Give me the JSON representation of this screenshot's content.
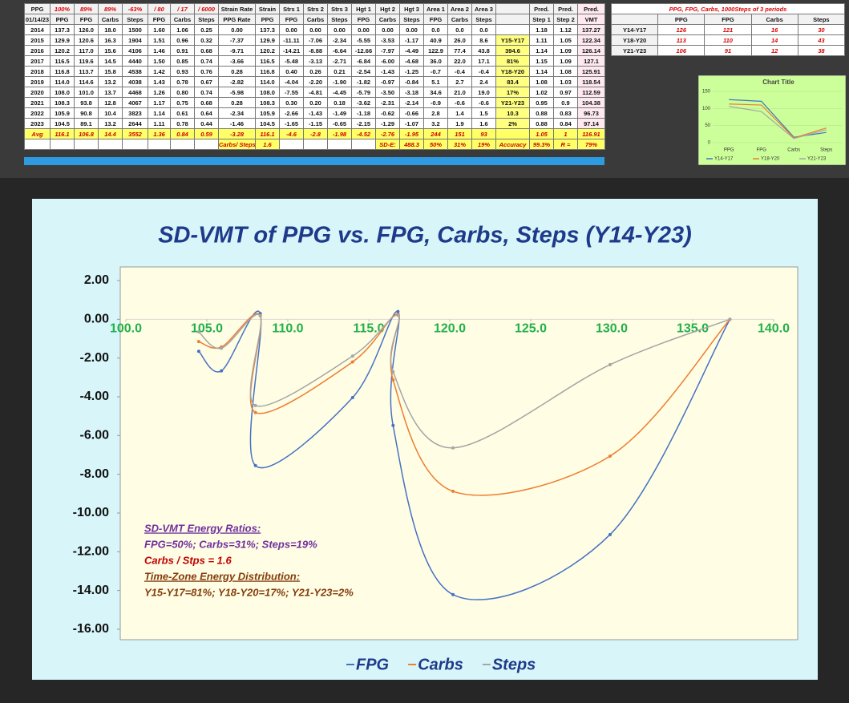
{
  "table": {
    "header": [
      [
        "PPG",
        "100%",
        "89%",
        "89%",
        "-63%",
        "/ 80",
        "/ 17",
        "/ 6000",
        "Strain Rate",
        "Strain",
        "Strs 1",
        "Strs 2",
        "Strs 3",
        "Hgt 1",
        "Hgt 2",
        "Hgt 3",
        "Area 1",
        "Area 2",
        "Area 3",
        "Pred.",
        "Pred.",
        "Pred."
      ],
      [
        "01/14/23",
        "PPG",
        "FPG",
        "Carbs",
        "Steps",
        "FPG",
        "Carbs",
        "Steps",
        "PPG Rate",
        "PPG",
        "FPG",
        "Carbs",
        "Steps",
        "FPG",
        "Carbs",
        "Steps",
        "FPG",
        "Carbs",
        "Steps",
        "Step 1",
        "Step 2",
        "VMT"
      ]
    ],
    "rows": [
      [
        "2014",
        "137.3",
        "126.0",
        "18.0",
        "1500",
        "1.60",
        "1.06",
        "0.25",
        "0.00",
        "137.3",
        "0.00",
        "0.00",
        "0.00",
        "0.00",
        "0.00",
        "0.00",
        "0.0",
        "0.0",
        "0.0",
        "1.18",
        "1.12",
        "137.27"
      ],
      [
        "2015",
        "129.9",
        "120.6",
        "16.3",
        "1904",
        "1.51",
        "0.96",
        "0.32",
        "-7.37",
        "129.9",
        "-11.11",
        "-7.06",
        "-2.34",
        "-5.55",
        "-3.53",
        "-1.17",
        "40.9",
        "26.0",
        "8.6",
        "1.11",
        "1.05",
        "122.34"
      ],
      [
        "2016",
        "120.2",
        "117.0",
        "15.6",
        "4106",
        "1.46",
        "0.91",
        "0.68",
        "-9.71",
        "120.2",
        "-14.21",
        "-8.88",
        "-6.64",
        "-12.66",
        "-7.97",
        "-4.49",
        "122.9",
        "77.4",
        "43.8",
        "1.14",
        "1.09",
        "126.14"
      ],
      [
        "2017",
        "116.5",
        "119.6",
        "14.5",
        "4440",
        "1.50",
        "0.85",
        "0.74",
        "-3.66",
        "116.5",
        "-5.48",
        "-3.13",
        "-2.71",
        "-6.84",
        "-6.00",
        "-4.68",
        "36.0",
        "22.0",
        "17.1",
        "1.15",
        "1.09",
        "127.1"
      ],
      [
        "2018",
        "116.8",
        "113.7",
        "15.8",
        "4538",
        "1.42",
        "0.93",
        "0.76",
        "0.28",
        "116.8",
        "0.40",
        "0.26",
        "0.21",
        "-2.54",
        "-1.43",
        "-1.25",
        "-0.7",
        "-0.4",
        "-0.4",
        "1.14",
        "1.08",
        "125.91"
      ],
      [
        "2019",
        "114.0",
        "114.6",
        "13.2",
        "4038",
        "1.43",
        "0.78",
        "0.67",
        "-2.82",
        "114.0",
        "-4.04",
        "-2.20",
        "-1.90",
        "-1.82",
        "-0.97",
        "-0.84",
        "5.1",
        "2.7",
        "2.4",
        "1.08",
        "1.03",
        "118.54"
      ],
      [
        "2020",
        "108.0",
        "101.0",
        "13.7",
        "4468",
        "1.26",
        "0.80",
        "0.74",
        "-5.98",
        "108.0",
        "-7.55",
        "-4.81",
        "-4.45",
        "-5.79",
        "-3.50",
        "-3.18",
        "34.6",
        "21.0",
        "19.0",
        "1.02",
        "0.97",
        "112.59"
      ],
      [
        "2021",
        "108.3",
        "93.8",
        "12.8",
        "4067",
        "1.17",
        "0.75",
        "0.68",
        "0.28",
        "108.3",
        "0.30",
        "0.20",
        "0.18",
        "-3.62",
        "-2.31",
        "-2.14",
        "-0.9",
        "-0.6",
        "-0.6",
        "0.95",
        "0.9",
        "104.38"
      ],
      [
        "2022",
        "105.9",
        "90.8",
        "10.4",
        "3823",
        "1.14",
        "0.61",
        "0.64",
        "-2.34",
        "105.9",
        "-2.66",
        "-1.43",
        "-1.49",
        "-1.18",
        "-0.62",
        "-0.66",
        "2.8",
        "1.4",
        "1.5",
        "0.88",
        "0.83",
        "96.73"
      ],
      [
        "2023",
        "104.5",
        "89.1",
        "13.2",
        "2644",
        "1.11",
        "0.78",
        "0.44",
        "-1.46",
        "104.5",
        "-1.65",
        "-1.15",
        "-0.65",
        "-2.15",
        "-1.29",
        "-1.07",
        "3.2",
        "1.9",
        "1.6",
        "0.88",
        "0.84",
        "97.14"
      ]
    ],
    "period_column": [
      "Y15-Y17",
      "394.6",
      "81%",
      "Y18-Y20",
      "83.4",
      "17%",
      "Y21-Y23",
      "10.3",
      "2%"
    ],
    "avg": [
      "Avg",
      "116.1",
      "106.8",
      "14.4",
      "3552",
      "1.36",
      "0.84",
      "0.59",
      "-3.28",
      "116.1",
      "-4.6",
      "-2.8",
      "-1.98",
      "-4.52",
      "-2.76",
      "-1.95",
      "244",
      "151",
      "93",
      "1.05",
      "1",
      "116.91"
    ],
    "summary": [
      "Carbs/ Steps",
      "1.6",
      "SD-E:",
      "488.3",
      "50%",
      "31%",
      "19%",
      "Accuracy",
      "99.3%",
      "R =",
      "79%"
    ]
  },
  "side_table": {
    "title": "PPG, FPG, Carbs, 1000Steps of 3 periods",
    "header": [
      "PPG",
      "FPG",
      "Carbs",
      "Steps"
    ],
    "rows": [
      {
        "label": "Y14-Y17",
        "values": [
          "126",
          "121",
          "16",
          "30"
        ]
      },
      {
        "label": "Y18-Y20",
        "values": [
          "113",
          "110",
          "14",
          "43"
        ]
      },
      {
        "label": "Y21-Y23",
        "values": [
          "106",
          "91",
          "12",
          "38"
        ]
      }
    ]
  },
  "chart_data": [
    {
      "type": "line",
      "title": "SD-VMT of PPG vs. FPG, Carbs, Steps  (Y14-Y23)",
      "x": [
        137.3,
        129.9,
        120.2,
        116.5,
        116.8,
        114.0,
        108.0,
        108.3,
        105.9,
        104.5
      ],
      "series": [
        {
          "name": "FPG",
          "color": "#4472c4",
          "values": [
            0,
            -11.11,
            -14.21,
            -5.48,
            0.4,
            -4.04,
            -7.55,
            0.3,
            -2.66,
            -1.65
          ]
        },
        {
          "name": "Carbs",
          "color": "#ed7d31",
          "values": [
            0,
            -7.06,
            -8.88,
            -3.13,
            0.26,
            -2.2,
            -4.81,
            0.2,
            -1.43,
            -1.15
          ]
        },
        {
          "name": "Steps",
          "color": "#a5a5a5",
          "values": [
            0,
            -2.34,
            -6.64,
            -2.71,
            0.21,
            -1.9,
            -4.45,
            0.18,
            -1.49,
            -0.65
          ]
        }
      ],
      "xlim": [
        100,
        140
      ],
      "xticks": [
        {
          "value": 100,
          "label": "100.0"
        },
        {
          "value": 105,
          "label": "105.0"
        },
        {
          "value": 110,
          "label": "110.0"
        },
        {
          "value": 115,
          "label": "115.0"
        },
        {
          "value": 120,
          "label": "120.0"
        },
        {
          "value": 125,
          "label": "125.0"
        },
        {
          "value": 130,
          "label": "130.0"
        },
        {
          "value": 135,
          "label": "135.0"
        },
        {
          "value": 140,
          "label": "140.0"
        }
      ],
      "ylim": [
        -16,
        2
      ],
      "yticks": [
        {
          "value": 2,
          "label": "2.00"
        },
        {
          "value": 0,
          "label": "0.00"
        },
        {
          "value": -2,
          "label": "-2.00"
        },
        {
          "value": -4,
          "label": "-4.00"
        },
        {
          "value": -6,
          "label": "-6.00"
        },
        {
          "value": -8,
          "label": "-8.00"
        },
        {
          "value": -10,
          "label": "-10.00"
        },
        {
          "value": -12,
          "label": "-12.00"
        },
        {
          "value": -14,
          "label": "-14.00"
        },
        {
          "value": -16,
          "label": "-16.00"
        }
      ],
      "annotations": [
        "SD-VMT Energy Ratios:",
        "FPG=50%;  Carbs=31%;  Steps=19%",
        "Carbs / Stps = 1.6",
        "Time-Zone Energy Distribution:",
        "Y15-Y17=81%;  Y18-Y20=17%;  Y21-Y23=2%"
      ],
      "smooth": true,
      "legend": "bottom"
    },
    {
      "type": "line",
      "title": "Chart Title",
      "categories": [
        "PPG",
        "FPG",
        "Carbs",
        "Steps"
      ],
      "series": [
        {
          "name": "Y14-Y17",
          "color": "#4472c4",
          "values": [
            126,
            121,
            16,
            30
          ]
        },
        {
          "name": "Y18-Y20",
          "color": "#ed7d31",
          "values": [
            113,
            110,
            14,
            43
          ]
        },
        {
          "name": "Y21-Y23",
          "color": "#a5a5a5",
          "values": [
            106,
            91,
            12,
            38
          ]
        }
      ],
      "ylim": [
        0,
        150
      ],
      "yticks": [
        0,
        50,
        100,
        150
      ],
      "legend": "bottom"
    }
  ]
}
